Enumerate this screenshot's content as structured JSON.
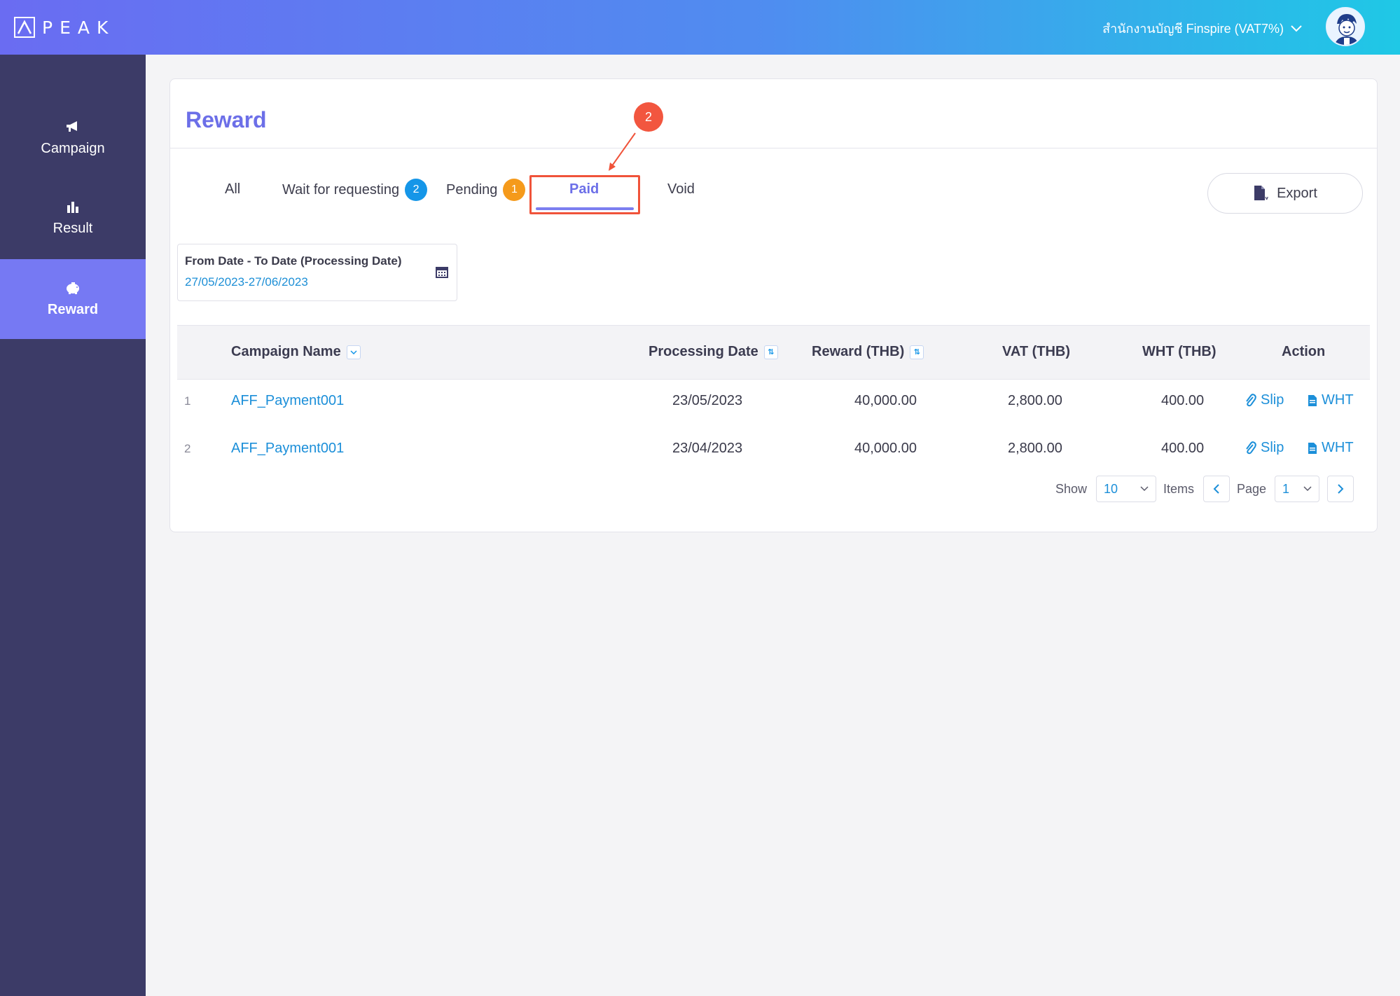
{
  "header": {
    "logo_text": "PEAK",
    "company_selector": "สำนักงานบัญชี Finspire (VAT7%)"
  },
  "sidebar": {
    "items": [
      {
        "label": "Campaign",
        "icon": "megaphone-icon"
      },
      {
        "label": "Result",
        "icon": "bar-chart-icon"
      },
      {
        "label": "Reward",
        "icon": "piggy-bank-icon",
        "active": true
      }
    ]
  },
  "page": {
    "title": "Reward",
    "step_marker": "2"
  },
  "tabs": [
    {
      "label": "All"
    },
    {
      "label": "Wait for requesting",
      "badge": "2"
    },
    {
      "label": "Pending",
      "badge": "1"
    },
    {
      "label": "Paid",
      "active": true
    },
    {
      "label": "Void"
    }
  ],
  "toolbar": {
    "export_label": "Export"
  },
  "date_filter": {
    "label": "From Date - To Date (Processing Date)",
    "value": "27/05/2023-27/06/2023"
  },
  "table": {
    "columns": [
      "Campaign Name",
      "Processing Date",
      "Reward (THB)",
      "VAT (THB)",
      "WHT (THB)",
      "Action"
    ],
    "rows": [
      {
        "index": "1",
        "campaign": "AFF_Payment001",
        "date": "23/05/2023",
        "reward": "40,000.00",
        "vat": "2,800.00",
        "wht": "400.00"
      },
      {
        "index": "2",
        "campaign": "AFF_Payment001",
        "date": "23/04/2023",
        "reward": "40,000.00",
        "vat": "2,800.00",
        "wht": "400.00"
      }
    ],
    "action_slip": "Slip",
    "action_wht": "WHT"
  },
  "pagination": {
    "show_label": "Show",
    "items_per_page": "10",
    "items_label": "Items",
    "page_label": "Page",
    "current_page": "1"
  },
  "colors": {
    "accent": "#6c6fe8",
    "sidebar": "#3c3b67",
    "link": "#1c8fd9",
    "highlight": "#f0533a"
  }
}
